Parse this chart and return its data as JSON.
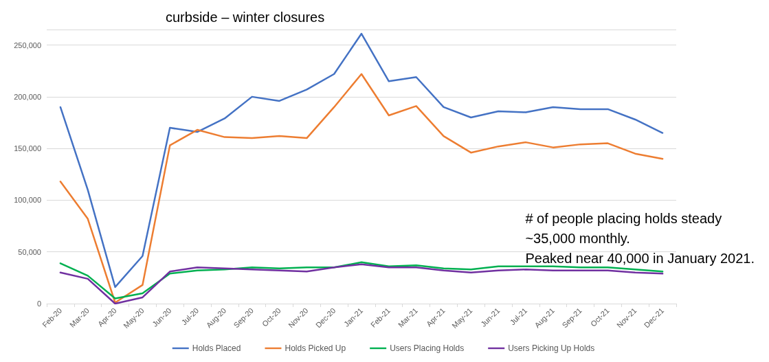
{
  "chart_data": {
    "type": "line",
    "title": "curbside – winter closures",
    "categories": [
      "Feb-20",
      "Mar-20",
      "Apr-20",
      "May-20",
      "Jun-20",
      "Jul-20",
      "Aug-20",
      "Sep-20",
      "Oct-20",
      "Nov-20",
      "Dec-20",
      "Jan-21",
      "Feb-21",
      "Mar-21",
      "Apr-21",
      "May-21",
      "Jun-21",
      "Jul-21",
      "Aug-21",
      "Sep-21",
      "Oct-21",
      "Nov-21",
      "Dec-21"
    ],
    "series": [
      {
        "name": "Holds Placed",
        "color": "#4472c4",
        "values": [
          190000,
          110000,
          16000,
          46000,
          170000,
          166000,
          179000,
          200000,
          196000,
          207000,
          222000,
          261000,
          215000,
          219000,
          190000,
          180000,
          186000,
          185000,
          190000,
          188000,
          188000,
          178000,
          165000
        ]
      },
      {
        "name": "Holds Picked Up",
        "color": "#ed7d31",
        "values": [
          118000,
          82000,
          1000,
          18000,
          153000,
          168000,
          161000,
          160000,
          162000,
          160000,
          190000,
          222000,
          182000,
          191000,
          162000,
          146000,
          152000,
          156000,
          151000,
          154000,
          155000,
          145000,
          140000
        ]
      },
      {
        "name": "Users Placing Holds",
        "color": "#00b050",
        "values": [
          39000,
          27000,
          5000,
          10000,
          29000,
          32000,
          33000,
          35000,
          34000,
          35000,
          35000,
          40000,
          36000,
          37000,
          34000,
          33000,
          36000,
          36000,
          36000,
          35000,
          35000,
          33000,
          31000
        ]
      },
      {
        "name": "Users Picking Up Holds",
        "color": "#7030a0",
        "values": [
          30000,
          24000,
          0,
          6000,
          31000,
          35000,
          34000,
          33000,
          32000,
          31000,
          35000,
          38000,
          35000,
          35000,
          32000,
          30000,
          32000,
          33000,
          32000,
          32000,
          32000,
          30000,
          29000
        ]
      }
    ],
    "ylim": [
      0,
      265000
    ],
    "yticks": [
      {
        "value": 0,
        "label": "0"
      },
      {
        "value": 50000,
        "label": "50,000"
      },
      {
        "value": 100000,
        "label": "100,000"
      },
      {
        "value": 150000,
        "label": "150,000"
      },
      {
        "value": 200000,
        "label": "200,000"
      },
      {
        "value": 250000,
        "label": "250,000"
      }
    ],
    "grid": "y",
    "legend": "bottom",
    "marker": "none",
    "line_style": "solid",
    "annotations": [
      "# of people placing holds steady\n~35,000 monthly.\nPeaked near 40,000 in January 2021."
    ]
  }
}
